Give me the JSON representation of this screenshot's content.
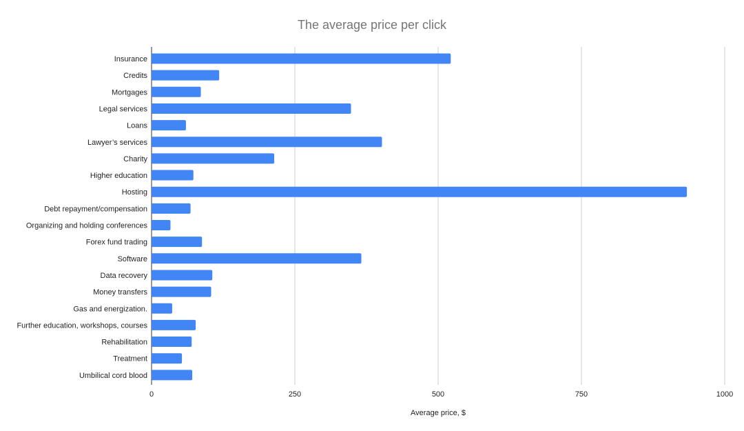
{
  "chart_data": {
    "type": "bar",
    "orientation": "horizontal",
    "title": "The average price per click",
    "xlabel": "Average price, $",
    "ylabel": "",
    "xlim": [
      0,
      1000
    ],
    "xticks": [
      0,
      250,
      500,
      750,
      1000
    ],
    "grid": true,
    "legend": "none",
    "bar_color": "#4285f4",
    "categories": [
      "Insurance",
      "Credits",
      "Mortgages",
      "Legal services",
      "Loans",
      "Lawyer’s services",
      "Charity",
      "Higher education",
      "Hosting",
      "Debt repayment/compensation",
      "Organizing and holding conferences",
      "Forex fund trading",
      "Software",
      "Data recovery",
      "Money transfers",
      "Gas and energization.",
      "Further education, workshops, courses",
      "Rehabilitation",
      "Treatment",
      "Umbilical cord blood"
    ],
    "values": [
      522,
      118,
      86,
      348,
      60,
      402,
      214,
      73,
      934,
      68,
      33,
      88,
      366,
      106,
      104,
      36,
      77,
      70,
      53,
      71
    ]
  }
}
